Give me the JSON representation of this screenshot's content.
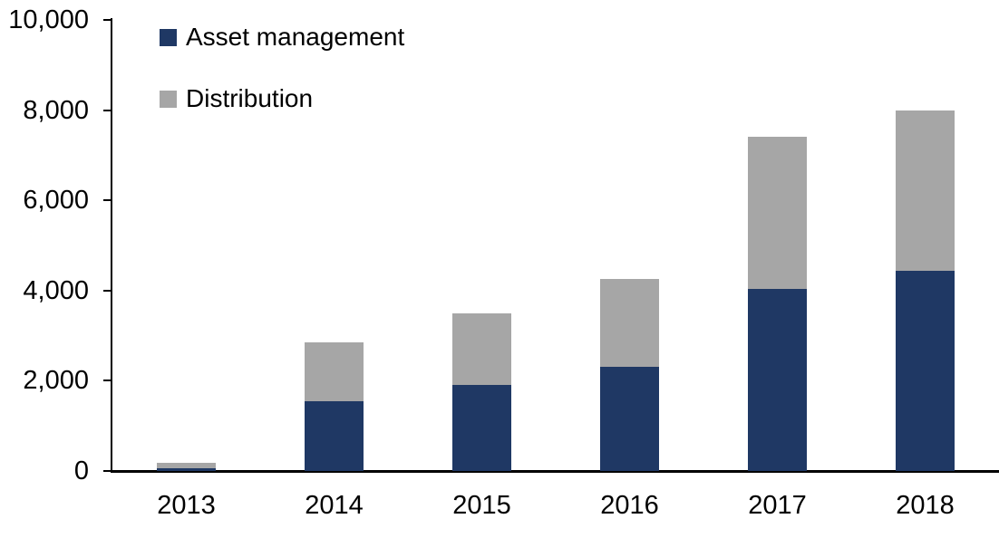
{
  "chart_data": {
    "type": "bar",
    "stacked": true,
    "title": "",
    "xlabel": "",
    "ylabel": "",
    "categories": [
      "2013",
      "2014",
      "2015",
      "2016",
      "2017",
      "2018"
    ],
    "series": [
      {
        "name": "Asset management",
        "color": "#1f3864",
        "values": [
          70,
          1550,
          1900,
          2300,
          4030,
          4430
        ]
      },
      {
        "name": "Distribution",
        "color": "#a6a6a6",
        "values": [
          110,
          1300,
          1600,
          1950,
          3370,
          3570
        ]
      }
    ],
    "totals": [
      180,
      2850,
      3500,
      4250,
      7400,
      8000
    ],
    "ylim": [
      0,
      10000
    ],
    "yticks": [
      {
        "value": 0,
        "label": "0"
      },
      {
        "value": 2000,
        "label": "2,000"
      },
      {
        "value": 4000,
        "label": "4,000"
      },
      {
        "value": 6000,
        "label": "6,000"
      },
      {
        "value": 8000,
        "label": "8,000"
      },
      {
        "value": 10000,
        "label": "10,000"
      }
    ],
    "grid": false,
    "legend_position": "top-left",
    "colors": {
      "axis": "#000000",
      "text": "#000000",
      "background": "#ffffff"
    }
  }
}
